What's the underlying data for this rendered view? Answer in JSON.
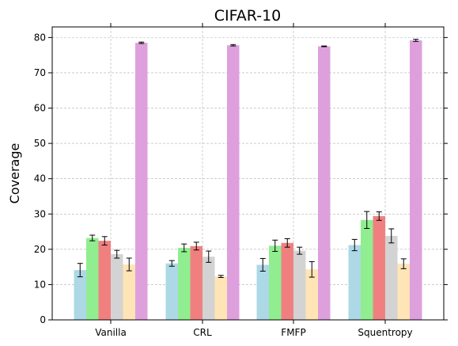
{
  "chart_data": {
    "type": "bar",
    "title": "CIFAR-10",
    "xlabel": "",
    "ylabel": "Coverage",
    "ylim": [
      0,
      83
    ],
    "yticks": [
      0,
      10,
      20,
      30,
      40,
      50,
      60,
      70,
      80
    ],
    "grid": true,
    "legend": "none",
    "categories": [
      "Vanilla",
      "CRL",
      "FMFP",
      "Squentropy"
    ],
    "series": [
      {
        "color": "#add8e6",
        "values": [
          14.1,
          16.0,
          15.6,
          21.2
        ],
        "errors": [
          1.9,
          0.8,
          1.8,
          1.6
        ]
      },
      {
        "color": "#90ee90",
        "values": [
          23.2,
          20.4,
          21.0,
          28.3
        ],
        "errors": [
          0.8,
          1.1,
          1.6,
          2.4
        ]
      },
      {
        "color": "#f08080",
        "values": [
          22.4,
          20.9,
          21.8,
          29.4
        ],
        "errors": [
          1.2,
          1.1,
          1.2,
          1.2
        ]
      },
      {
        "color": "#d3d3d3",
        "values": [
          18.6,
          17.9,
          19.6,
          23.8
        ],
        "errors": [
          1.1,
          1.6,
          1.0,
          2.0
        ]
      },
      {
        "color": "#ffe4b5",
        "values": [
          15.7,
          12.3,
          14.3,
          15.9
        ],
        "errors": [
          1.8,
          0.3,
          2.2,
          1.4
        ]
      },
      {
        "color": "#dda0dd",
        "values": [
          78.5,
          77.8,
          77.5,
          79.2
        ],
        "errors": [
          0.2,
          0.2,
          0.1,
          0.3
        ]
      }
    ]
  }
}
